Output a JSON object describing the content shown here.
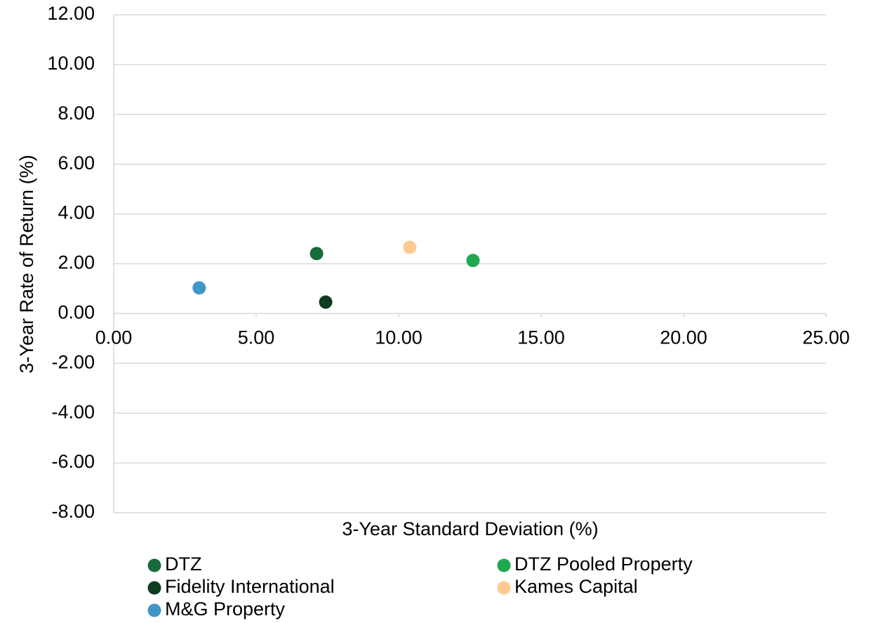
{
  "chart_data": {
    "type": "scatter",
    "xlabel": "3-Year Standard Deviation (%)",
    "ylabel": "3-Year Rate of Return (%)",
    "xlim": [
      0,
      25
    ],
    "ylim": [
      -8,
      12
    ],
    "xticks": [
      {
        "value": 0,
        "label": "0.00"
      },
      {
        "value": 5,
        "label": "5.00"
      },
      {
        "value": 10,
        "label": "10.00"
      },
      {
        "value": 15,
        "label": "15.00"
      },
      {
        "value": 20,
        "label": "20.00"
      },
      {
        "value": 25,
        "label": "25.00"
      }
    ],
    "yticks": [
      {
        "value": -8,
        "label": "-8.00"
      },
      {
        "value": -6,
        "label": "-6.00"
      },
      {
        "value": -4,
        "label": "-4.00"
      },
      {
        "value": -2,
        "label": "-2.00"
      },
      {
        "value": 0,
        "label": "0.00"
      },
      {
        "value": 2,
        "label": "2.00"
      },
      {
        "value": 4,
        "label": "4.00"
      },
      {
        "value": 6,
        "label": "6.00"
      },
      {
        "value": 8,
        "label": "8.00"
      },
      {
        "value": 10,
        "label": "10.00"
      },
      {
        "value": 12,
        "label": "12.00"
      }
    ],
    "grid": true,
    "legend": "bottom",
    "series": [
      {
        "name": "DTZ",
        "color": "#1a6b3a",
        "x": [
          7.12
        ],
        "values": [
          2.41
        ]
      },
      {
        "name": "DTZ Pooled Property",
        "color": "#1fa84f",
        "x": [
          12.61
        ],
        "values": [
          2.13
        ]
      },
      {
        "name": "Fidelity International",
        "color": "#0f3b20",
        "x": [
          7.44
        ],
        "values": [
          0.46
        ]
      },
      {
        "name": "Kames Capital",
        "color": "#ffc992",
        "x": [
          10.39
        ],
        "values": [
          2.66
        ]
      },
      {
        "name": "M&G Property",
        "color": "#4196c8",
        "x": [
          3.0
        ],
        "values": [
          1.03
        ]
      }
    ]
  }
}
